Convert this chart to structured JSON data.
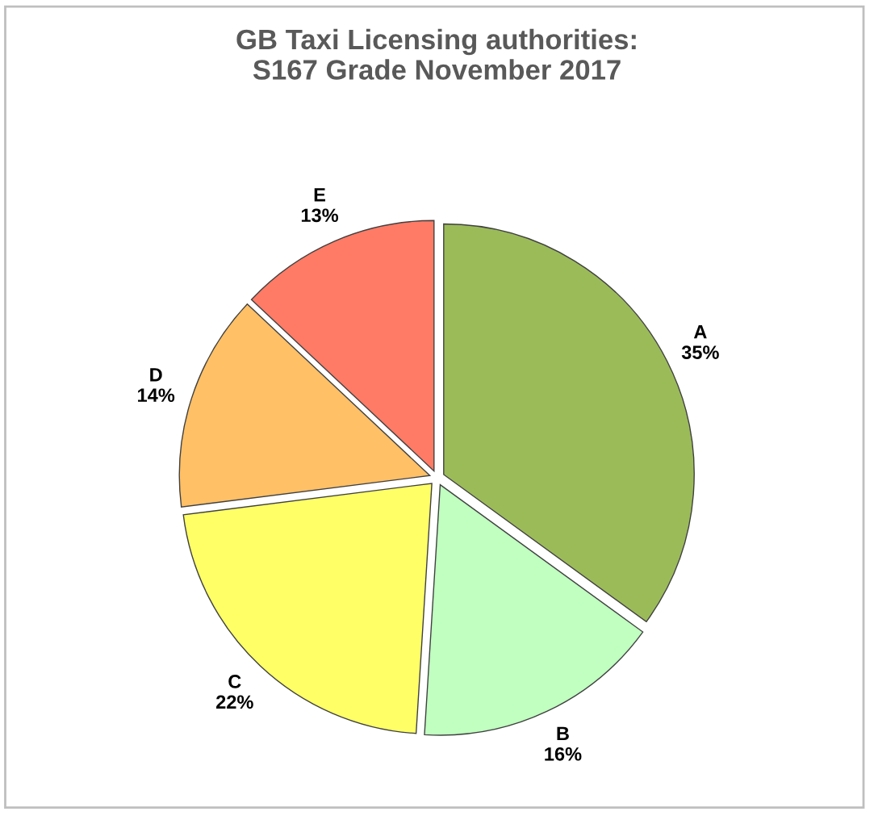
{
  "chart_data": {
    "type": "pie",
    "title": "GB Taxi Licensing authorities:\nS167 Grade November 2017",
    "categories": [
      "A",
      "B",
      "C",
      "D",
      "E"
    ],
    "values": [
      35,
      16,
      22,
      14,
      13
    ],
    "value_labels": [
      "35%",
      "16%",
      "22%",
      "14%",
      "13%"
    ],
    "colors": [
      "#9bbb59",
      "#c0ffc0",
      "#ffff66",
      "#ffc066",
      "#ff7b66"
    ],
    "legend": false
  }
}
